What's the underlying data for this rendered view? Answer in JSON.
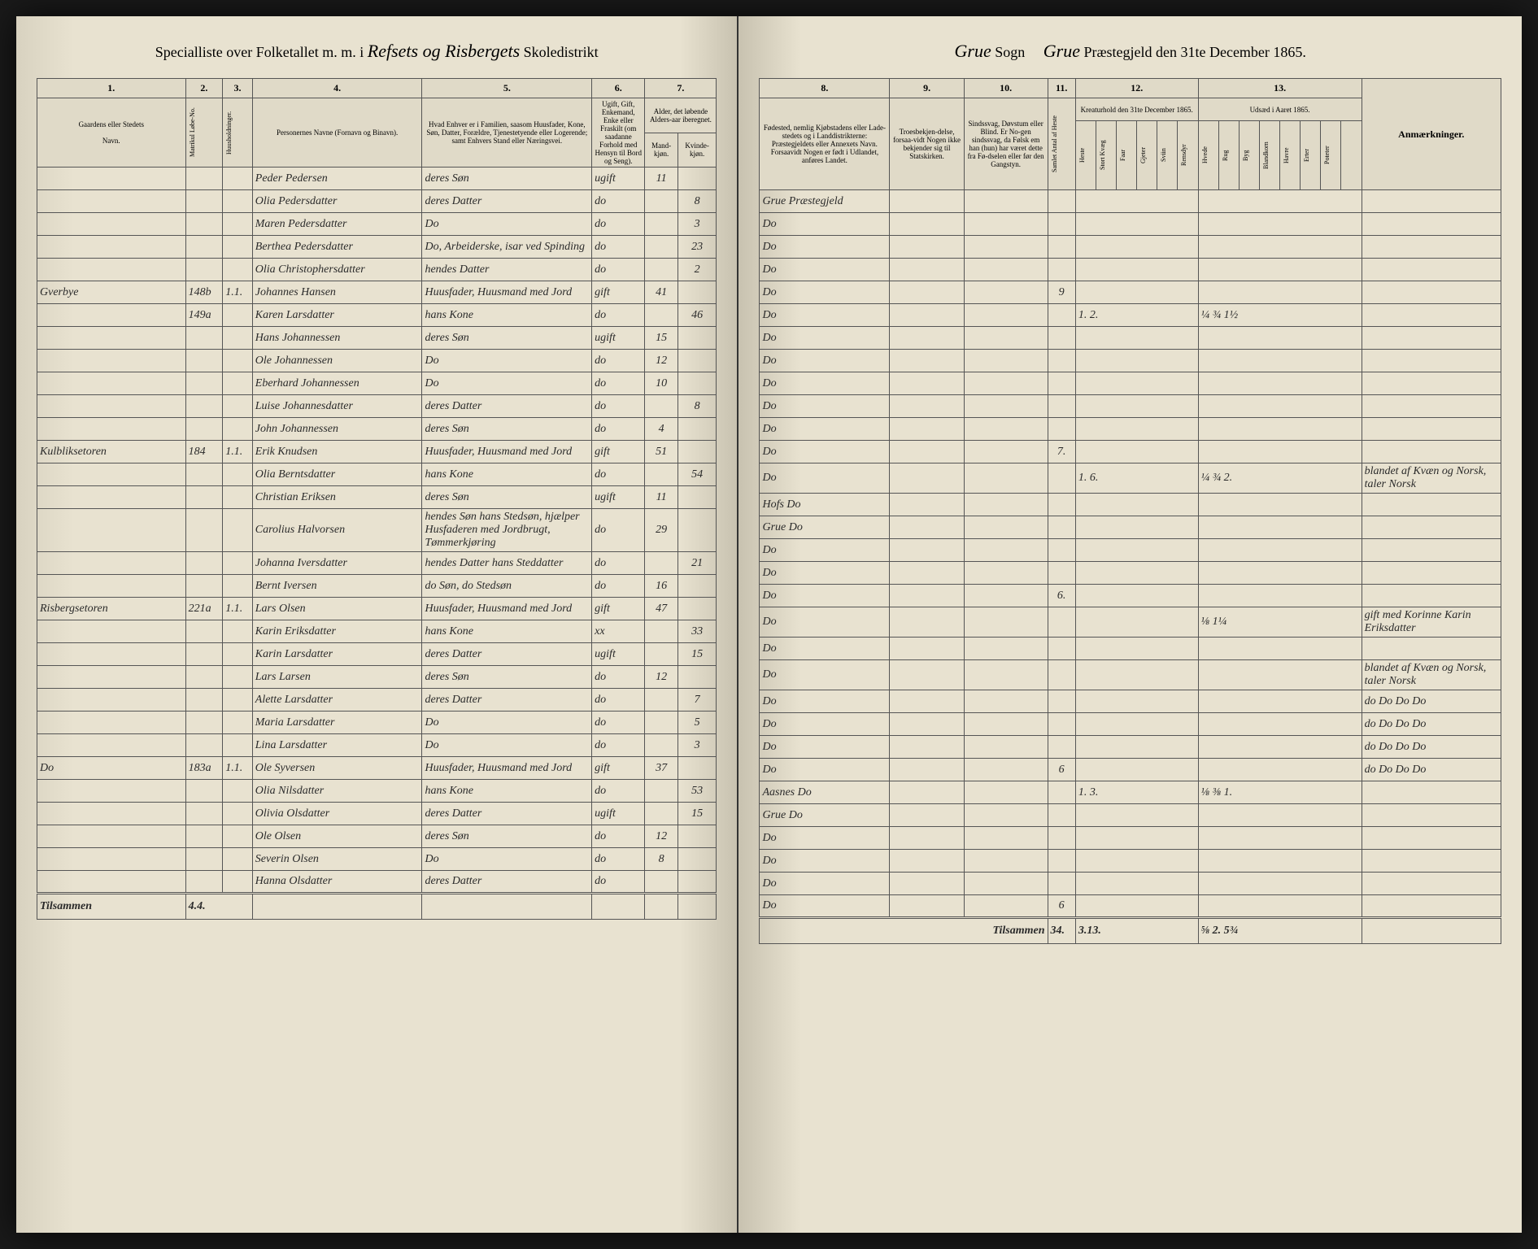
{
  "header_left": {
    "prefix": "Specialliste over Folketallet m. m. i",
    "district": "Refsets og Risbergets",
    "suffix": "Skoledistrikt"
  },
  "header_right": {
    "sogn_label": "Sogn",
    "sogn": "Grue",
    "prestegjeld": "Grue",
    "date_label": "Præstegjeld den 31te December 1865."
  },
  "left_columns": {
    "c1": "1.",
    "c2": "2.",
    "c3": "3.",
    "c4": "4.",
    "c5": "5.",
    "c6": "6.",
    "c7": "7.",
    "h1": "Gaardens eller Stedets",
    "h1b": "Navn.",
    "h_matr": "Matrikul Løbe-No.",
    "h_hus": "Huusholdninger.",
    "h4": "Personernes Navne (Fornavn og Binavn).",
    "h5": "Hvad Enhver er i Familien, saasom Huusfader, Kone, Søn, Datter, Forældre, Tjenestetyende eller Logerende; samt Enhvers Stand eller Næringsvei.",
    "h6": "Ugift, Gift, Enkemand, Enke eller Fraskilt (om saadanne Forhold med Hensyn til Bord og Seng).",
    "h7": "Alder, det løbende Alders-aar iberegnet.",
    "h7m": "Mand-kjøn.",
    "h7k": "Kvinde-kjøn."
  },
  "right_columns": {
    "c8": "8.",
    "c9": "9.",
    "c10": "10.",
    "c11": "11.",
    "c12": "12.",
    "c13": "13.",
    "h8": "Fødested, nemlig Kjøbstadens eller Lade-stedets og i Landdistrikterne: Præstegjeldets eller Annexets Navn. Forsaavidt Nogen er født i Udlandet, anføres Landet.",
    "h9": "Troesbekjen-delse, forsaa-vidt Nogen ikke bekjender sig til Statskirken.",
    "h10": "Sindssvag, Døvstum eller Blind. Er No-gen sindssvag, da Følsk em han (hun) har været dette fra Fø-dselen eller før den Gangstyn.",
    "h11": "Samlet Antal af Heste",
    "h12": "Kreaturhold den 31te December 1865.",
    "h13": "Udsæd i Aaret 1865.",
    "h_anm": "Anmærkninger."
  },
  "rows": [
    {
      "gaard": "",
      "matr": "",
      "hus": "",
      "navn": "Peder Pedersen",
      "stilling": "deres Søn",
      "stand": "ugift",
      "m": "11",
      "k": "",
      "sted": "Grue Præstegjeld"
    },
    {
      "gaard": "",
      "matr": "",
      "hus": "",
      "navn": "Olia Pedersdatter",
      "stilling": "deres Datter",
      "stand": "do",
      "m": "",
      "k": "8",
      "sted": "Do"
    },
    {
      "gaard": "",
      "matr": "",
      "hus": "",
      "navn": "Maren Pedersdatter",
      "stilling": "Do",
      "stand": "do",
      "m": "",
      "k": "3",
      "sted": "Do"
    },
    {
      "gaard": "",
      "matr": "",
      "hus": "",
      "navn": "Berthea Pedersdatter",
      "stilling": "Do, Arbeiderske, isar ved Spinding",
      "stand": "do",
      "m": "",
      "k": "23",
      "sted": "Do"
    },
    {
      "gaard": "",
      "matr": "",
      "hus": "",
      "navn": "Olia Christophersdatter",
      "stilling": "hendes Datter",
      "stand": "do",
      "m": "",
      "k": "2",
      "sted": "Do",
      "c11": "9"
    },
    {
      "gaard": "Gverbye",
      "matr": "148b",
      "hus": "1.1.",
      "navn": "Johannes Hansen",
      "stilling": "Huusfader, Huusmand med Jord",
      "stand": "gift",
      "m": "41",
      "k": "",
      "sted": "Do",
      "c12": "1. 2.",
      "c13": "¼ ¾  1½"
    },
    {
      "gaard": "",
      "matr": "149a",
      "hus": "",
      "navn": "Karen Larsdatter",
      "stilling": "hans Kone",
      "stand": "do",
      "m": "",
      "k": "46",
      "sted": "Do"
    },
    {
      "gaard": "",
      "matr": "",
      "hus": "",
      "navn": "Hans Johannessen",
      "stilling": "deres Søn",
      "stand": "ugift",
      "m": "15",
      "k": "",
      "sted": "Do"
    },
    {
      "gaard": "",
      "matr": "",
      "hus": "",
      "navn": "Ole Johannessen",
      "stilling": "Do",
      "stand": "do",
      "m": "12",
      "k": "",
      "sted": "Do"
    },
    {
      "gaard": "",
      "matr": "",
      "hus": "",
      "navn": "Eberhard Johannessen",
      "stilling": "Do",
      "stand": "do",
      "m": "10",
      "k": "",
      "sted": "Do"
    },
    {
      "gaard": "",
      "matr": "",
      "hus": "",
      "navn": "Luise Johannesdatter",
      "stilling": "deres Datter",
      "stand": "do",
      "m": "",
      "k": "8",
      "sted": "Do"
    },
    {
      "gaard": "",
      "matr": "",
      "hus": "",
      "navn": "John Johannessen",
      "stilling": "deres Søn",
      "stand": "do",
      "m": "4",
      "k": "",
      "sted": "Do",
      "c11": "7."
    },
    {
      "gaard": "Kulbliksetoren",
      "matr": "184",
      "hus": "1.1.",
      "navn": "Erik Knudsen",
      "stilling": "Huusfader, Huusmand med Jord",
      "stand": "gift",
      "m": "51",
      "k": "",
      "sted": "Do",
      "c12": "1. 6.",
      "c13": "¼ ¾  2.",
      "anm": "blandet af Kvæn og Norsk, taler Norsk"
    },
    {
      "gaard": "",
      "matr": "",
      "hus": "",
      "navn": "Olia Berntsdatter",
      "stilling": "hans Kone",
      "stand": "do",
      "m": "",
      "k": "54",
      "sted": "Hofs Do"
    },
    {
      "gaard": "",
      "matr": "",
      "hus": "",
      "navn": "Christian Eriksen",
      "stilling": "deres Søn",
      "stand": "ugift",
      "m": "11",
      "k": "",
      "sted": "Grue Do"
    },
    {
      "gaard": "",
      "matr": "",
      "hus": "",
      "navn": "Carolius Halvorsen",
      "stilling": "hendes Søn hans Stedsøn, hjælper Husfaderen med Jordbrugt, Tømmerkjøring",
      "stand": "do",
      "m": "29",
      "k": "",
      "sted": "Do"
    },
    {
      "gaard": "",
      "matr": "",
      "hus": "",
      "navn": "Johanna Iversdatter",
      "stilling": "hendes Datter hans Steddatter",
      "stand": "do",
      "m": "",
      "k": "21",
      "sted": "Do"
    },
    {
      "gaard": "",
      "matr": "",
      "hus": "",
      "navn": "Bernt Iversen",
      "stilling": "do Søn, do Stedsøn",
      "stand": "do",
      "m": "16",
      "k": "",
      "sted": "Do",
      "c11": "6."
    },
    {
      "gaard": "Risbergsetoren",
      "matr": "221a",
      "hus": "1.1.",
      "navn": "Lars Olsen",
      "stilling": "Huusfader, Huusmand med Jord",
      "stand": "gift",
      "m": "47",
      "k": "",
      "sted": "Do",
      "c13": "⅛  1¼",
      "anm": "gift med Korinne Karin Eriksdatter"
    },
    {
      "gaard": "",
      "matr": "",
      "hus": "",
      "navn": "Karin Eriksdatter",
      "stilling": "hans Kone",
      "stand": "xx",
      "m": "",
      "k": "33",
      "sted": "Do",
      "anm": ""
    },
    {
      "gaard": "",
      "matr": "",
      "hus": "",
      "navn": "Karin Larsdatter",
      "stilling": "deres Datter",
      "stand": "ugift",
      "m": "",
      "k": "15",
      "sted": "Do",
      "anm": "blandet af Kvæn og Norsk, taler Norsk"
    },
    {
      "gaard": "",
      "matr": "",
      "hus": "",
      "navn": "Lars Larsen",
      "stilling": "deres Søn",
      "stand": "do",
      "m": "12",
      "k": "",
      "sted": "Do",
      "anm": "do  Do  Do  Do"
    },
    {
      "gaard": "",
      "matr": "",
      "hus": "",
      "navn": "Alette Larsdatter",
      "stilling": "deres Datter",
      "stand": "do",
      "m": "",
      "k": "7",
      "sted": "Do",
      "anm": "do  Do  Do  Do"
    },
    {
      "gaard": "",
      "matr": "",
      "hus": "",
      "navn": "Maria Larsdatter",
      "stilling": "Do",
      "stand": "do",
      "m": "",
      "k": "5",
      "sted": "Do",
      "anm": "do  Do  Do  Do"
    },
    {
      "gaard": "",
      "matr": "",
      "hus": "",
      "navn": "Lina Larsdatter",
      "stilling": "Do",
      "stand": "do",
      "m": "",
      "k": "3",
      "sted": "Do",
      "c11": "6",
      "anm": "do  Do  Do  Do"
    },
    {
      "gaard": "Do",
      "matr": "183a",
      "hus": "1.1.",
      "navn": "Ole Syversen",
      "stilling": "Huusfader, Huusmand med Jord",
      "stand": "gift",
      "m": "37",
      "k": "",
      "sted": "Aasnes Do",
      "c12": "1. 3.",
      "c13": "⅛ ⅜  1."
    },
    {
      "gaard": "",
      "matr": "",
      "hus": "",
      "navn": "Olia Nilsdatter",
      "stilling": "hans Kone",
      "stand": "do",
      "m": "",
      "k": "53",
      "sted": "Grue Do"
    },
    {
      "gaard": "",
      "matr": "",
      "hus": "",
      "navn": "Olivia Olsdatter",
      "stilling": "deres Datter",
      "stand": "ugift",
      "m": "",
      "k": "15",
      "sted": "Do"
    },
    {
      "gaard": "",
      "matr": "",
      "hus": "",
      "navn": "Ole Olsen",
      "stilling": "deres Søn",
      "stand": "do",
      "m": "12",
      "k": "",
      "sted": "Do"
    },
    {
      "gaard": "",
      "matr": "",
      "hus": "",
      "navn": "Severin Olsen",
      "stilling": "Do",
      "stand": "do",
      "m": "8",
      "k": "",
      "sted": "Do"
    },
    {
      "gaard": "",
      "matr": "",
      "hus": "",
      "navn": "Hanna Olsdatter",
      "stilling": "deres Datter",
      "stand": "do",
      "m": "",
      "k": "",
      "sted": "Do",
      "c11": "6"
    }
  ],
  "footer": {
    "tilsammen": "Tilsammen",
    "left_sum": "4.4.",
    "right_c11": "34.",
    "right_c12": "3.13.",
    "right_c13": "⅝ 2.  5¾"
  }
}
